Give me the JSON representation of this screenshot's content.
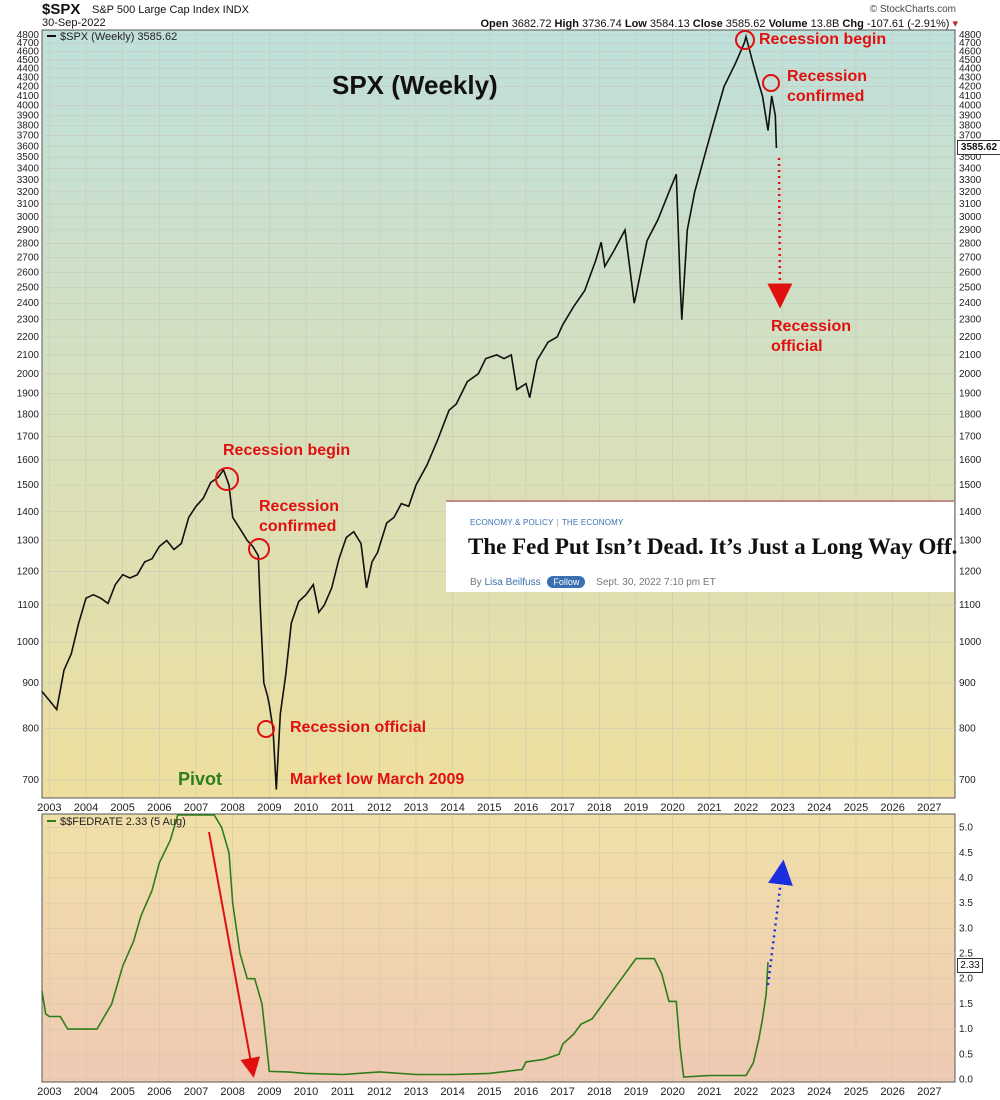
{
  "header": {
    "symbol": "$SPX",
    "description": "S&P 500 Large Cap Index INDX",
    "date": "30-Sep-2022",
    "open_label": "Open",
    "open": "3682.72",
    "high_label": "High",
    "high": "3736.74",
    "low_label": "Low",
    "low": "3584.13",
    "close_label": "Close",
    "close": "3585.62",
    "volume_label": "Volume",
    "volume": "13.8B",
    "chg_label": "Chg",
    "chg": "-107.61 (-2.91%)",
    "credit": "© StockCharts.com"
  },
  "chart_data": [
    {
      "type": "line",
      "title": "SPX (Weekly)",
      "legend": "$SPX (Weekly) 3585.62",
      "last_value_label": "3585.62",
      "y_scale": "log",
      "ylim": [
        670,
        4850
      ],
      "xlim": [
        2002.8,
        2027.7
      ],
      "y_ticks": [
        700,
        800,
        900,
        1000,
        1100,
        1200,
        1300,
        1400,
        1500,
        1600,
        1700,
        1800,
        1900,
        2000,
        2100,
        2200,
        2300,
        2400,
        2500,
        2600,
        2700,
        2800,
        2900,
        3000,
        3100,
        3200,
        3300,
        3400,
        3500,
        3600,
        3700,
        3800,
        3900,
        4000,
        4100,
        4200,
        4300,
        4400,
        4500,
        4600,
        4700,
        4800
      ],
      "x_ticks": [
        "2003",
        "2004",
        "2005",
        "2006",
        "2007",
        "2008",
        "2009",
        "2010",
        "2011",
        "2012",
        "2013",
        "2014",
        "2015",
        "2016",
        "2017",
        "2018",
        "2019",
        "2020",
        "2021",
        "2022",
        "2023",
        "2024",
        "2025",
        "2026",
        "2027"
      ],
      "series": [
        {
          "x": [
            2002.8,
            2003.0,
            2003.2,
            2003.4,
            2003.6,
            2003.8,
            2004.0,
            2004.2,
            2004.4,
            2004.6,
            2004.8,
            2005.0,
            2005.2,
            2005.4,
            2005.6,
            2005.8,
            2006.0,
            2006.2,
            2006.4,
            2006.6,
            2006.8,
            2007.0,
            2007.2,
            2007.4,
            2007.6,
            2007.75,
            2007.9,
            2008.0,
            2008.2,
            2008.4,
            2008.55,
            2008.7,
            2008.75,
            2008.85,
            2008.95,
            2009.0,
            2009.1,
            2009.19,
            2009.3,
            2009.45,
            2009.6,
            2009.8,
            2010.0,
            2010.2,
            2010.35,
            2010.5,
            2010.7,
            2010.9,
            2011.1,
            2011.3,
            2011.5,
            2011.65,
            2011.8,
            2011.95,
            2012.2,
            2012.4,
            2012.6,
            2012.8,
            2013.0,
            2013.3,
            2013.6,
            2013.9,
            2014.1,
            2014.4,
            2014.7,
            2014.9,
            2015.2,
            2015.4,
            2015.6,
            2015.75,
            2016.0,
            2016.1,
            2016.3,
            2016.6,
            2016.85,
            2017.0,
            2017.3,
            2017.6,
            2017.9,
            2018.05,
            2018.15,
            2018.4,
            2018.7,
            2018.95,
            2019.0,
            2019.3,
            2019.6,
            2019.9,
            2020.1,
            2020.2,
            2020.25,
            2020.4,
            2020.6,
            2020.9,
            2021.1,
            2021.4,
            2021.7,
            2021.95,
            2022.0,
            2022.2,
            2022.3,
            2022.45,
            2022.6,
            2022.7,
            2022.8,
            2022.83
          ],
          "values": [
            880,
            860,
            840,
            930,
            970,
            1050,
            1120,
            1130,
            1120,
            1105,
            1160,
            1190,
            1180,
            1190,
            1230,
            1240,
            1280,
            1300,
            1270,
            1290,
            1380,
            1420,
            1450,
            1510,
            1530,
            1560,
            1500,
            1380,
            1340,
            1300,
            1280,
            1250,
            1100,
            900,
            870,
            850,
            800,
            683,
            830,
            920,
            1050,
            1110,
            1130,
            1160,
            1080,
            1100,
            1150,
            1240,
            1310,
            1330,
            1290,
            1150,
            1230,
            1260,
            1360,
            1380,
            1430,
            1420,
            1500,
            1580,
            1690,
            1820,
            1850,
            1960,
            2000,
            2080,
            2100,
            2080,
            2100,
            1920,
            1950,
            1880,
            2070,
            2170,
            2200,
            2270,
            2380,
            2480,
            2680,
            2810,
            2640,
            2750,
            2900,
            2400,
            2450,
            2820,
            2980,
            3200,
            3350,
            2550,
            2300,
            2900,
            3200,
            3550,
            3800,
            4200,
            4450,
            4700,
            4780,
            4450,
            4300,
            4100,
            3750,
            4100,
            3900,
            3585
          ]
        }
      ],
      "annotations": [
        "Recession begin",
        "Recession confirmed",
        "Recession official",
        "Market low March 2009",
        "Pivot",
        "Recession begin",
        "Recession confirmed",
        "Recession official"
      ]
    },
    {
      "type": "line",
      "legend": "$$FEDRATE 2.33 (5 Aug)",
      "last_value_label": "2.33",
      "ylim": [
        -0.03,
        5.25
      ],
      "xlim": [
        2002.8,
        2027.7
      ],
      "y_ticks": [
        "0.0",
        "0.5",
        "1.0",
        "1.5",
        "2.0",
        "2.5",
        "3.0",
        "3.5",
        "4.0",
        "4.5",
        "5.0"
      ],
      "x_ticks": [
        "2003",
        "2004",
        "2005",
        "2006",
        "2007",
        "2008",
        "2009",
        "2010",
        "2011",
        "2012",
        "2013",
        "2014",
        "2015",
        "2016",
        "2017",
        "2018",
        "2019",
        "2020",
        "2021",
        "2022",
        "2023",
        "2024",
        "2025",
        "2026",
        "2027"
      ],
      "series": [
        {
          "x": [
            2002.8,
            2002.9,
            2003.0,
            2003.3,
            2003.5,
            2003.8,
            2004.0,
            2004.3,
            2004.5,
            2004.7,
            2005.0,
            2005.3,
            2005.5,
            2005.8,
            2006.0,
            2006.3,
            2006.5,
            2006.8,
            2007.0,
            2007.3,
            2007.5,
            2007.7,
            2007.9,
            2008.0,
            2008.2,
            2008.4,
            2008.6,
            2008.8,
            2008.95,
            2009.0,
            2009.5,
            2010.0,
            2011.0,
            2012.0,
            2013.0,
            2014.0,
            2015.0,
            2015.9,
            2016.0,
            2016.5,
            2016.9,
            2017.0,
            2017.3,
            2017.5,
            2017.8,
            2018.0,
            2018.3,
            2018.5,
            2018.8,
            2019.0,
            2019.3,
            2019.5,
            2019.7,
            2019.9,
            2020.1,
            2020.2,
            2020.3,
            2021.0,
            2022.0,
            2022.2,
            2022.35,
            2022.45,
            2022.55,
            2022.6
          ],
          "values": [
            1.75,
            1.3,
            1.25,
            1.25,
            1.0,
            1.0,
            1.0,
            1.0,
            1.25,
            1.5,
            2.25,
            2.75,
            3.25,
            3.75,
            4.3,
            4.75,
            5.25,
            5.25,
            5.25,
            5.25,
            5.25,
            5.0,
            4.5,
            3.5,
            2.5,
            2.0,
            2.0,
            1.5,
            0.5,
            0.16,
            0.15,
            0.12,
            0.1,
            0.15,
            0.1,
            0.1,
            0.12,
            0.2,
            0.35,
            0.4,
            0.5,
            0.7,
            0.9,
            1.1,
            1.2,
            1.4,
            1.7,
            1.9,
            2.2,
            2.4,
            2.4,
            2.4,
            2.1,
            1.55,
            1.55,
            0.65,
            0.05,
            0.08,
            0.08,
            0.33,
            0.8,
            1.2,
            1.7,
            2.33
          ]
        }
      ]
    }
  ],
  "annotations_text": {
    "recession_begin_2007": "Recession begin",
    "recession_confirmed_2008": "Recession confirmed",
    "recession_official_2008": "Recession official",
    "market_low": "Market low March 2009",
    "pivot": "Pivot",
    "recession_begin_2022": "Recession begin",
    "recession_confirmed_2022": "Recession confirmed",
    "recession_official_2022": "Recession official"
  },
  "article": {
    "section": "ECONOMY & POLICY",
    "subsection": "THE ECONOMY",
    "headline": "The Fed Put Isn’t Dead. It’s Just a Long Way Off.",
    "by": "By",
    "author": "Lisa Beilfuss",
    "follow_label": "Follow",
    "timestamp": "Sept. 30, 2022 7:10 pm ET"
  },
  "colors": {
    "price_line": "#111111",
    "rate_line": "#2e7d1a",
    "annotation": "#e01010",
    "rate_arrow": "#1a2ee0",
    "top_bg_top": "#bfe0dc",
    "top_bg_bottom": "#eedf9e",
    "bottom_bg_top": "#f0e0a8",
    "bottom_bg_bottom": "#efc9b4"
  }
}
